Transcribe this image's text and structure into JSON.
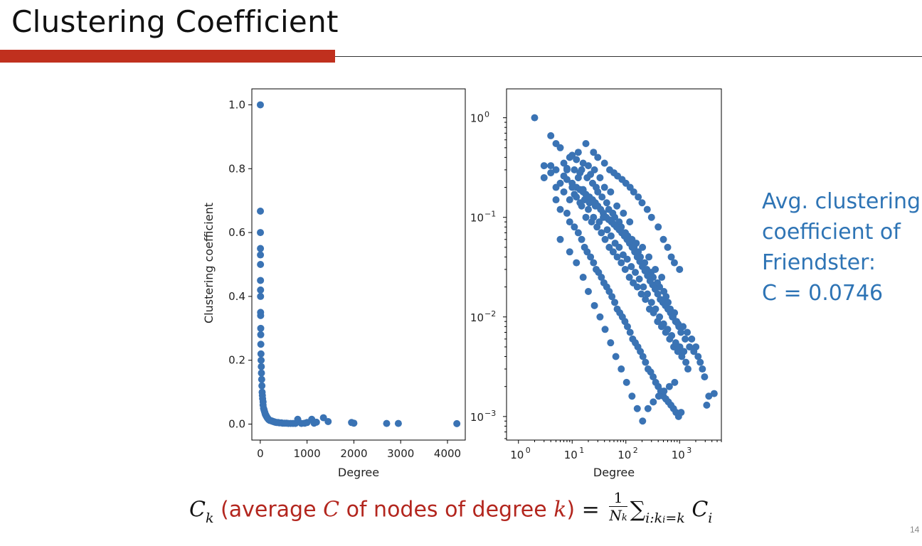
{
  "slide": {
    "title": "Clustering Coefficient",
    "accent_color": "#c0301e",
    "page_number": "14"
  },
  "summary": {
    "color": "#2e74b5",
    "lines": [
      "Avg. clustering",
      "coefficient of",
      "Friendster:",
      "C = 0.0746"
    ]
  },
  "formula": {
    "lhs_symbol": "C",
    "lhs_subscript": "k",
    "desc_open": "(average ",
    "desc_symbol_c": "C",
    "desc_mid": " of nodes of degree ",
    "desc_symbol_k": "k",
    "desc_close": ")",
    "equals": " = ",
    "frac_numerator": "1",
    "frac_denominator": "N",
    "frac_denominator_subscript": "k",
    "sum_symbol": "∑",
    "sum_subscript": "i:k",
    "sum_subscript_sub": "i",
    "sum_subscript_rest": "=k",
    "term_symbol": "C",
    "term_subscript": "i"
  },
  "chart_data": [
    {
      "type": "scatter",
      "title": "",
      "xlabel": "Degree",
      "ylabel": "Clustering coefficient",
      "xlim": [
        -180,
        4380
      ],
      "ylim": [
        -0.05,
        1.05
      ],
      "xticks": [
        0,
        1000,
        2000,
        3000,
        4000
      ],
      "xtick_labels": [
        "0",
        "1000",
        "2000",
        "3000",
        "4000"
      ],
      "yticks": [
        0.0,
        0.2,
        0.4,
        0.6,
        0.8,
        1.0
      ],
      "ytick_labels": [
        "0.0",
        "0.2",
        "0.4",
        "0.6",
        "0.8",
        "1.0"
      ],
      "grid": false,
      "marker_color": "#3a73b4",
      "x": [
        2,
        3,
        3,
        4,
        4,
        5,
        5,
        6,
        6,
        7,
        8,
        10,
        10,
        12,
        15,
        18,
        22,
        25,
        30,
        35,
        40,
        45,
        50,
        60,
        60,
        70,
        80,
        90,
        100,
        110,
        120,
        130,
        140,
        150,
        160,
        170,
        180,
        200,
        220,
        240,
        260,
        280,
        300,
        320,
        350,
        380,
        410,
        450,
        480,
        520,
        560,
        600,
        650,
        700,
        750,
        800,
        880,
        950,
        1000,
        1100,
        1150,
        1200,
        1350,
        1450,
        1950,
        2000,
        2700,
        2950,
        4200
      ],
      "y": [
        1.0,
        0.667,
        0.6,
        0.55,
        0.53,
        0.5,
        0.45,
        0.42,
        0.4,
        0.35,
        0.34,
        0.3,
        0.28,
        0.25,
        0.22,
        0.2,
        0.18,
        0.16,
        0.14,
        0.12,
        0.1,
        0.09,
        0.08,
        0.07,
        0.06,
        0.05,
        0.045,
        0.04,
        0.035,
        0.03,
        0.028,
        0.025,
        0.022,
        0.02,
        0.018,
        0.016,
        0.014,
        0.012,
        0.011,
        0.01,
        0.009,
        0.008,
        0.007,
        0.006,
        0.005,
        0.005,
        0.004,
        0.004,
        0.003,
        0.003,
        0.003,
        0.002,
        0.002,
        0.002,
        0.002,
        0.015,
        0.002,
        0.003,
        0.005,
        0.015,
        0.003,
        0.006,
        0.02,
        0.008,
        0.005,
        0.003,
        0.002,
        0.002,
        0.0015
      ]
    },
    {
      "type": "scatter",
      "title": "",
      "xlabel": "Degree",
      "ylabel": "",
      "x_scale": "log",
      "y_scale": "log",
      "xlim": [
        0.6,
        6000
      ],
      "ylim": [
        0.00058,
        1.95
      ],
      "xtick_labels": [
        "10^0",
        "10^1",
        "10^2",
        "10^3"
      ],
      "ytick_labels": [
        "10^0",
        "10^-1",
        "10^-2",
        "10^-3"
      ],
      "grid": false,
      "marker_color": "#3a73b4",
      "x": [
        2,
        3,
        4,
        5,
        6,
        7,
        8,
        9,
        10,
        11,
        12,
        13,
        14,
        15,
        16,
        18,
        19,
        20,
        22,
        24,
        26,
        28,
        30,
        33,
        36,
        40,
        44,
        48,
        52,
        57,
        62,
        68,
        75,
        82,
        90,
        98,
        108,
        118,
        130,
        142,
        156,
        170,
        186,
        204,
        224,
        245,
        268,
        294,
        322,
        353,
        387,
        424,
        465,
        510,
        560,
        610,
        670,
        735,
        805,
        880,
        970,
        1060,
        1160,
        1270,
        1390,
        1530,
        1680,
        1840,
        2010,
        2210,
        2420,
        2660,
        2920,
        3200,
        3500,
        4400,
        3,
        4,
        5,
        6,
        7,
        8,
        9,
        10,
        11,
        12,
        13,
        14,
        15,
        16,
        17,
        18,
        20,
        21,
        23,
        25,
        27,
        29,
        32,
        35,
        38,
        41,
        45,
        49,
        53,
        58,
        63,
        69,
        75,
        82,
        89,
        97,
        106,
        116,
        126,
        137,
        150,
        163,
        178,
        194,
        212,
        231,
        252,
        275,
        300,
        327,
        357,
        389,
        424,
        462,
        504,
        550,
        600,
        654,
        713,
        778,
        848,
        925,
        1010,
        1100,
        1200,
        1310,
        1430,
        5,
        6,
        8,
        9,
        11,
        13,
        15,
        17,
        19,
        22,
        25,
        28,
        31,
        35,
        39,
        44,
        49,
        55,
        62,
        69,
        77,
        86,
        96,
        107,
        120,
        134,
        150,
        167,
        186,
        208,
        232,
        259,
        289,
        322,
        359,
        400,
        446,
        498,
        555,
        619,
        690,
        770,
        858,
        957,
        1067,
        4,
        5,
        7,
        8,
        10,
        12,
        14,
        16,
        18,
        21,
        24,
        27,
        30,
        34,
        38,
        43,
        48,
        54,
        60,
        67,
        75,
        84,
        94,
        105,
        117,
        131,
        146,
        163,
        182,
        203,
        227,
        253,
        282,
        315,
        351,
        392,
        437,
        488,
        544,
        607,
        677,
        755,
        842,
        940,
        6,
        9,
        12,
        16,
        20,
        26,
        33,
        41,
        52,
        65,
        82,
        103,
        130,
        163,
        205,
        258,
        324,
        408,
        513,
        645,
        811,
        25,
        30,
        40,
        50,
        60,
        70,
        85,
        100,
        120,
        140,
        170,
        200,
        250,
        300,
        400,
        500,
        600,
        700,
        800,
        1000
      ],
      "y": [
        1.0,
        0.33,
        0.66,
        0.55,
        0.5,
        0.35,
        0.31,
        0.4,
        0.42,
        0.3,
        0.38,
        0.45,
        0.28,
        0.3,
        0.35,
        0.55,
        0.25,
        0.33,
        0.27,
        0.22,
        0.3,
        0.2,
        0.18,
        0.25,
        0.16,
        0.2,
        0.14,
        0.12,
        0.18,
        0.11,
        0.1,
        0.13,
        0.09,
        0.08,
        0.11,
        0.07,
        0.065,
        0.09,
        0.06,
        0.05,
        0.055,
        0.045,
        0.04,
        0.05,
        0.035,
        0.03,
        0.04,
        0.028,
        0.025,
        0.03,
        0.022,
        0.02,
        0.025,
        0.018,
        0.016,
        0.014,
        0.012,
        0.01,
        0.011,
        0.009,
        0.008,
        0.007,
        0.008,
        0.006,
        0.007,
        0.005,
        0.006,
        0.0045,
        0.005,
        0.004,
        0.0035,
        0.003,
        0.0025,
        0.0013,
        0.0016,
        0.0017,
        0.25,
        0.28,
        0.2,
        0.22,
        0.18,
        0.3,
        0.15,
        0.2,
        0.17,
        0.16,
        0.25,
        0.14,
        0.13,
        0.19,
        0.15,
        0.1,
        0.12,
        0.14,
        0.09,
        0.1,
        0.13,
        0.08,
        0.09,
        0.07,
        0.1,
        0.06,
        0.075,
        0.05,
        0.065,
        0.045,
        0.055,
        0.04,
        0.05,
        0.035,
        0.042,
        0.03,
        0.038,
        0.025,
        0.032,
        0.022,
        0.028,
        0.02,
        0.024,
        0.017,
        0.02,
        0.015,
        0.017,
        0.012,
        0.014,
        0.011,
        0.012,
        0.009,
        0.01,
        0.008,
        0.0085,
        0.007,
        0.0075,
        0.006,
        0.0065,
        0.005,
        0.0055,
        0.0045,
        0.005,
        0.004,
        0.0045,
        0.0035,
        0.003,
        0.15,
        0.12,
        0.11,
        0.09,
        0.08,
        0.07,
        0.06,
        0.05,
        0.045,
        0.04,
        0.035,
        0.03,
        0.028,
        0.025,
        0.022,
        0.02,
        0.018,
        0.016,
        0.014,
        0.012,
        0.011,
        0.01,
        0.009,
        0.008,
        0.007,
        0.006,
        0.0055,
        0.005,
        0.0045,
        0.004,
        0.0035,
        0.003,
        0.0028,
        0.0025,
        0.0022,
        0.002,
        0.0018,
        0.0016,
        0.0015,
        0.0014,
        0.0013,
        0.0012,
        0.0011,
        0.001,
        0.0011,
        0.33,
        0.3,
        0.26,
        0.24,
        0.22,
        0.2,
        0.19,
        0.18,
        0.17,
        0.16,
        0.15,
        0.14,
        0.13,
        0.12,
        0.11,
        0.1,
        0.095,
        0.09,
        0.085,
        0.08,
        0.075,
        0.07,
        0.065,
        0.06,
        0.055,
        0.05,
        0.045,
        0.04,
        0.036,
        0.032,
        0.029,
        0.026,
        0.023,
        0.021,
        0.019,
        0.017,
        0.015,
        0.014,
        0.013,
        0.012,
        0.011,
        0.01,
        0.009,
        0.0085,
        0.06,
        0.045,
        0.035,
        0.025,
        0.018,
        0.013,
        0.01,
        0.0075,
        0.0055,
        0.004,
        0.003,
        0.0022,
        0.0016,
        0.0012,
        0.0009,
        0.0012,
        0.0014,
        0.0016,
        0.0018,
        0.002,
        0.0022,
        0.45,
        0.4,
        0.35,
        0.3,
        0.28,
        0.26,
        0.24,
        0.22,
        0.2,
        0.18,
        0.16,
        0.14,
        0.12,
        0.1,
        0.08,
        0.06,
        0.05,
        0.04,
        0.035,
        0.03
      ]
    }
  ]
}
